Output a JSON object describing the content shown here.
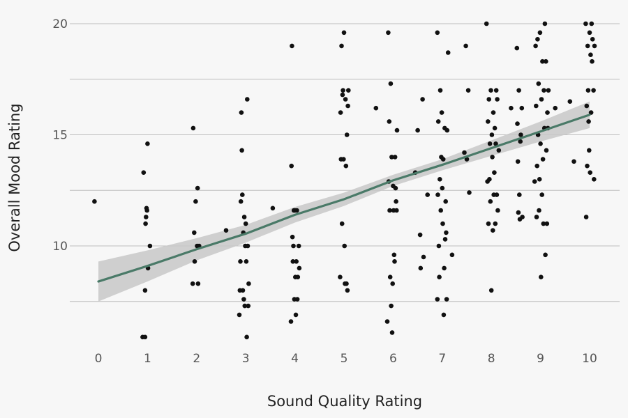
{
  "chart_data": {
    "type": "scatter",
    "title": "",
    "xlabel": "Sound Quality Rating",
    "ylabel": "Overall Mood Rating",
    "xlim": [
      -0.5,
      10.5
    ],
    "ylim": [
      5.3,
      20.6
    ],
    "x_ticks": [
      "0",
      "1",
      "2",
      "3",
      "4",
      "5",
      "6",
      "7",
      "8",
      "9",
      "10"
    ],
    "y_ticks": [
      "10",
      "15",
      "20"
    ],
    "y_gridlines": [
      7.5,
      10,
      12.5,
      15,
      17.5,
      20
    ],
    "grid": "horizontal",
    "legend": "none",
    "colors": {
      "points": "#111111",
      "fit_line": "#4a7a68",
      "confidence_band": "#c8c8c8",
      "grid": "#bdbdbd",
      "background": "#f7f7f7"
    },
    "fit": {
      "x": [
        0,
        1,
        2,
        3,
        4,
        5,
        6,
        7,
        8,
        9,
        10
      ],
      "y": [
        8.4,
        9.1,
        9.85,
        10.55,
        11.4,
        12.1,
        12.95,
        13.65,
        14.4,
        15.15,
        15.9
      ],
      "band_upper": [
        9.3,
        9.8,
        10.35,
        10.95,
        11.75,
        12.4,
        13.2,
        13.9,
        14.75,
        15.6,
        16.5
      ],
      "band_lower": [
        7.5,
        8.4,
        9.35,
        10.15,
        11.05,
        11.8,
        12.7,
        13.4,
        14.05,
        14.7,
        15.3
      ]
    },
    "points": [
      [
        -0.08,
        12.0
      ],
      [
        0.9,
        5.9
      ],
      [
        0.95,
        5.9
      ],
      [
        0.92,
        13.3
      ],
      [
        0.95,
        8.0
      ],
      [
        0.96,
        11.0
      ],
      [
        0.97,
        11.3
      ],
      [
        0.98,
        11.7
      ],
      [
        0.99,
        11.6
      ],
      [
        1.0,
        14.6
      ],
      [
        1.01,
        9.0
      ],
      [
        1.05,
        10.0
      ],
      [
        1.92,
        8.3
      ],
      [
        1.93,
        15.3
      ],
      [
        1.95,
        10.6
      ],
      [
        1.96,
        9.3
      ],
      [
        1.98,
        12.0
      ],
      [
        2.01,
        10.0
      ],
      [
        2.02,
        12.6
      ],
      [
        2.03,
        8.3
      ],
      [
        2.05,
        10.0
      ],
      [
        2.6,
        10.7
      ],
      [
        2.87,
        6.9
      ],
      [
        2.88,
        8.0
      ],
      [
        2.89,
        9.3
      ],
      [
        2.9,
        12.0
      ],
      [
        2.91,
        16.0
      ],
      [
        2.92,
        14.3
      ],
      [
        2.93,
        12.3
      ],
      [
        2.94,
        8.0
      ],
      [
        2.95,
        10.6
      ],
      [
        2.96,
        7.6
      ],
      [
        2.97,
        11.3
      ],
      [
        2.98,
        7.3
      ],
      [
        2.99,
        10.0
      ],
      [
        3.0,
        11.0
      ],
      [
        3.01,
        9.3
      ],
      [
        3.02,
        5.9
      ],
      [
        3.03,
        16.6
      ],
      [
        3.04,
        10.0
      ],
      [
        3.05,
        7.3
      ],
      [
        3.06,
        8.3
      ],
      [
        3.55,
        11.7
      ],
      [
        3.92,
        6.6
      ],
      [
        3.93,
        13.6
      ],
      [
        3.94,
        19.0
      ],
      [
        3.95,
        10.4
      ],
      [
        3.96,
        9.3
      ],
      [
        3.97,
        10.0
      ],
      [
        3.98,
        11.6
      ],
      [
        3.99,
        7.6
      ],
      [
        4.0,
        11.6
      ],
      [
        4.01,
        8.6
      ],
      [
        4.02,
        6.9
      ],
      [
        4.03,
        9.3
      ],
      [
        4.04,
        11.6
      ],
      [
        4.05,
        7.6
      ],
      [
        4.06,
        8.6
      ],
      [
        4.08,
        10.0
      ],
      [
        4.09,
        9.0
      ],
      [
        4.92,
        8.6
      ],
      [
        4.93,
        16.0
      ],
      [
        4.94,
        13.9
      ],
      [
        4.95,
        19.0
      ],
      [
        4.96,
        11.0
      ],
      [
        4.97,
        16.8
      ],
      [
        4.98,
        17.0
      ],
      [
        4.99,
        13.9
      ],
      [
        5.0,
        19.6
      ],
      [
        5.01,
        10.0
      ],
      [
        5.02,
        8.3
      ],
      [
        5.03,
        16.6
      ],
      [
        5.04,
        13.6
      ],
      [
        5.05,
        8.3
      ],
      [
        5.06,
        15.0
      ],
      [
        5.07,
        8.0
      ],
      [
        5.08,
        16.3
      ],
      [
        5.09,
        17.0
      ],
      [
        5.65,
        16.2
      ],
      [
        5.88,
        6.6
      ],
      [
        5.9,
        19.6
      ],
      [
        5.91,
        12.9
      ],
      [
        5.92,
        15.6
      ],
      [
        5.93,
        11.6
      ],
      [
        5.94,
        8.6
      ],
      [
        5.95,
        17.3
      ],
      [
        5.96,
        7.3
      ],
      [
        5.97,
        14.0
      ],
      [
        5.98,
        6.1
      ],
      [
        5.99,
        8.3
      ],
      [
        6.0,
        12.7
      ],
      [
        6.01,
        11.6
      ],
      [
        6.02,
        9.6
      ],
      [
        6.03,
        9.3
      ],
      [
        6.04,
        14.0
      ],
      [
        6.05,
        12.6
      ],
      [
        6.06,
        12.0
      ],
      [
        6.07,
        11.6
      ],
      [
        6.08,
        15.2
      ],
      [
        6.45,
        13.3
      ],
      [
        6.5,
        15.2
      ],
      [
        6.55,
        10.5
      ],
      [
        6.56,
        9.0
      ],
      [
        6.6,
        16.6
      ],
      [
        6.62,
        9.5
      ],
      [
        6.7,
        12.3
      ],
      [
        6.9,
        19.6
      ],
      [
        6.9,
        7.6
      ],
      [
        6.91,
        12.3
      ],
      [
        6.92,
        15.6
      ],
      [
        6.93,
        10.0
      ],
      [
        6.94,
        8.6
      ],
      [
        6.95,
        13.0
      ],
      [
        6.96,
        17.0
      ],
      [
        6.97,
        11.6
      ],
      [
        6.98,
        14.0
      ],
      [
        6.99,
        16.0
      ],
      [
        7.0,
        12.6
      ],
      [
        7.01,
        11.0
      ],
      [
        7.02,
        13.9
      ],
      [
        7.03,
        6.9
      ],
      [
        7.04,
        9.0
      ],
      [
        7.05,
        15.3
      ],
      [
        7.06,
        10.3
      ],
      [
        7.07,
        12.0
      ],
      [
        7.08,
        10.6
      ],
      [
        7.09,
        7.6
      ],
      [
        7.1,
        15.2
      ],
      [
        7.12,
        18.7
      ],
      [
        7.2,
        9.6
      ],
      [
        7.45,
        14.2
      ],
      [
        7.48,
        19.0
      ],
      [
        7.5,
        13.9
      ],
      [
        7.53,
        17.0
      ],
      [
        7.55,
        12.4
      ],
      [
        7.9,
        20.0
      ],
      [
        7.92,
        12.9
      ],
      [
        7.93,
        15.6
      ],
      [
        7.94,
        11.0
      ],
      [
        7.95,
        16.6
      ],
      [
        7.96,
        13.0
      ],
      [
        7.97,
        14.6
      ],
      [
        7.98,
        12.0
      ],
      [
        7.99,
        17.0
      ],
      [
        8.0,
        8.0
      ],
      [
        8.01,
        15.0
      ],
      [
        8.02,
        14.0
      ],
      [
        8.03,
        10.7
      ],
      [
        8.04,
        16.0
      ],
      [
        8.05,
        12.3
      ],
      [
        8.06,
        13.3
      ],
      [
        8.07,
        15.3
      ],
      [
        8.08,
        11.0
      ],
      [
        8.09,
        14.6
      ],
      [
        8.1,
        17.0
      ],
      [
        8.11,
        12.3
      ],
      [
        8.12,
        16.6
      ],
      [
        8.13,
        11.6
      ],
      [
        8.15,
        14.3
      ],
      [
        8.4,
        16.2
      ],
      [
        8.52,
        18.9
      ],
      [
        8.53,
        15.5
      ],
      [
        8.54,
        13.8
      ],
      [
        8.55,
        11.5
      ],
      [
        8.56,
        17.0
      ],
      [
        8.57,
        12.3
      ],
      [
        8.58,
        11.2
      ],
      [
        8.59,
        14.7
      ],
      [
        8.6,
        15.0
      ],
      [
        8.62,
        16.2
      ],
      [
        8.63,
        11.3
      ],
      [
        8.88,
        12.9
      ],
      [
        8.9,
        19.0
      ],
      [
        8.91,
        16.3
      ],
      [
        8.92,
        11.3
      ],
      [
        8.93,
        13.6
      ],
      [
        8.94,
        19.3
      ],
      [
        8.95,
        15.0
      ],
      [
        8.96,
        17.3
      ],
      [
        8.97,
        11.6
      ],
      [
        8.98,
        13.0
      ],
      [
        8.99,
        19.6
      ],
      [
        9.0,
        14.6
      ],
      [
        9.01,
        8.6
      ],
      [
        9.02,
        16.6
      ],
      [
        9.03,
        12.3
      ],
      [
        9.04,
        18.3
      ],
      [
        9.05,
        13.9
      ],
      [
        9.06,
        11.0
      ],
      [
        9.07,
        17.0
      ],
      [
        9.08,
        15.3
      ],
      [
        9.09,
        20.0
      ],
      [
        9.1,
        9.6
      ],
      [
        9.11,
        18.3
      ],
      [
        9.12,
        14.3
      ],
      [
        9.13,
        11.0
      ],
      [
        9.14,
        16.0
      ],
      [
        9.15,
        15.3
      ],
      [
        9.16,
        17.0
      ],
      [
        9.3,
        16.2
      ],
      [
        9.6,
        16.5
      ],
      [
        9.68,
        13.8
      ],
      [
        9.92,
        20.0
      ],
      [
        9.93,
        11.3
      ],
      [
        9.94,
        16.3
      ],
      [
        9.95,
        13.6
      ],
      [
        9.96,
        19.0
      ],
      [
        9.97,
        17.0
      ],
      [
        9.98,
        15.6
      ],
      [
        9.99,
        14.3
      ],
      [
        10.0,
        19.6
      ],
      [
        10.01,
        13.3
      ],
      [
        10.02,
        18.6
      ],
      [
        10.03,
        16.0
      ],
      [
        10.04,
        20.0
      ],
      [
        10.05,
        18.3
      ],
      [
        10.06,
        19.3
      ],
      [
        10.08,
        17.0
      ],
      [
        10.09,
        13.0
      ],
      [
        10.1,
        19.0
      ]
    ]
  }
}
